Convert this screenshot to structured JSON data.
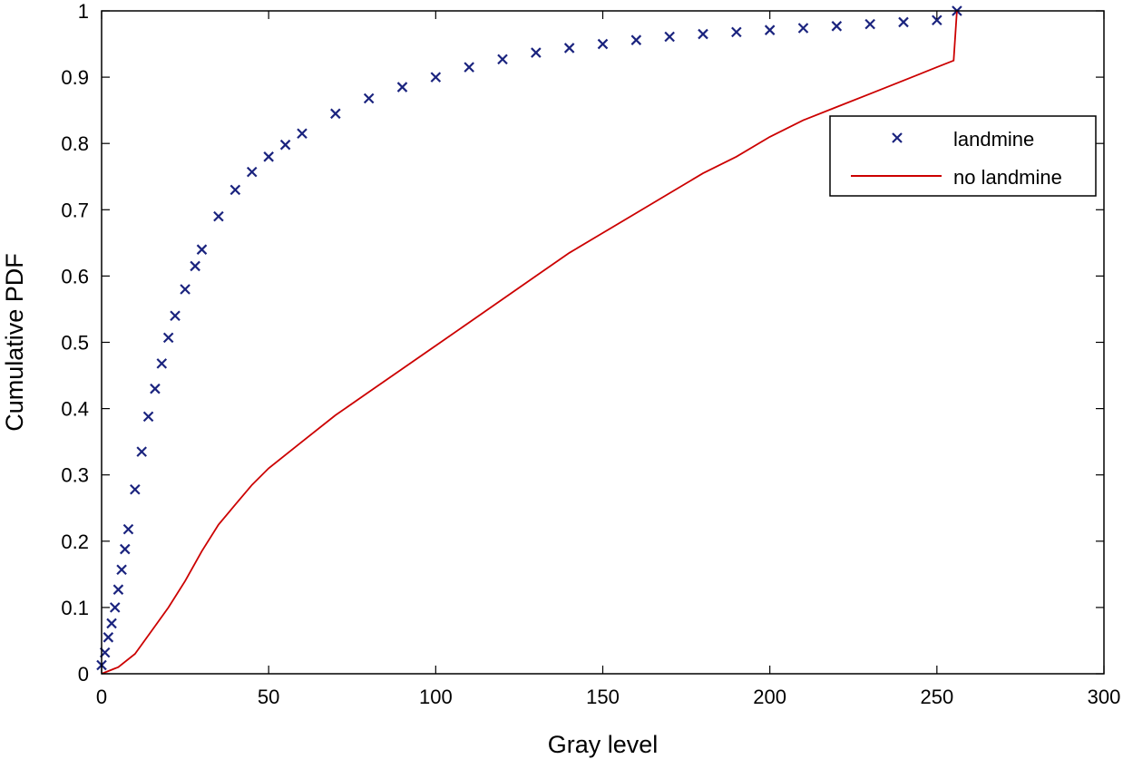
{
  "chart_data": {
    "type": "line",
    "title": "",
    "xlabel": "Gray level",
    "ylabel": "Cumulative PDF",
    "xlim": [
      0,
      300
    ],
    "ylim": [
      0,
      1
    ],
    "x_ticks": [
      "0",
      "50",
      "100",
      "150",
      "200",
      "250",
      "300"
    ],
    "y_ticks": [
      "0",
      "0.1",
      "0.2",
      "0.3",
      "0.4",
      "0.5",
      "0.6",
      "0.7",
      "0.8",
      "0.9",
      "1"
    ],
    "grid": false,
    "legend_position": "top-right",
    "series": [
      {
        "name": "landmine",
        "marker": "x",
        "color": "#1a237e",
        "x": [
          0,
          1,
          2,
          3,
          4,
          5,
          6,
          7,
          8,
          10,
          12,
          14,
          16,
          18,
          20,
          22,
          25,
          28,
          30,
          35,
          40,
          45,
          50,
          55,
          60,
          70,
          80,
          90,
          100,
          110,
          120,
          130,
          140,
          150,
          160,
          170,
          180,
          190,
          200,
          210,
          220,
          230,
          240,
          250,
          256
        ],
        "y": [
          0.013,
          0.032,
          0.055,
          0.076,
          0.1,
          0.127,
          0.157,
          0.188,
          0.218,
          0.278,
          0.335,
          0.388,
          0.43,
          0.468,
          0.507,
          0.54,
          0.58,
          0.615,
          0.64,
          0.69,
          0.73,
          0.757,
          0.78,
          0.798,
          0.815,
          0.845,
          0.868,
          0.885,
          0.9,
          0.915,
          0.927,
          0.937,
          0.944,
          0.95,
          0.956,
          0.961,
          0.965,
          0.968,
          0.971,
          0.974,
          0.977,
          0.98,
          0.983,
          0.986,
          1.0
        ]
      },
      {
        "name": "no landmine",
        "marker": "line",
        "color": "#cc0000",
        "x": [
          0,
          5,
          10,
          15,
          20,
          25,
          30,
          35,
          40,
          45,
          50,
          60,
          70,
          80,
          90,
          100,
          110,
          120,
          130,
          140,
          150,
          160,
          170,
          180,
          190,
          200,
          210,
          220,
          230,
          240,
          250,
          255,
          256
        ],
        "y": [
          0.0,
          0.01,
          0.03,
          0.065,
          0.1,
          0.14,
          0.185,
          0.225,
          0.255,
          0.285,
          0.31,
          0.35,
          0.39,
          0.425,
          0.46,
          0.495,
          0.53,
          0.565,
          0.6,
          0.635,
          0.665,
          0.695,
          0.725,
          0.755,
          0.78,
          0.81,
          0.835,
          0.855,
          0.875,
          0.895,
          0.915,
          0.925,
          1.0
        ]
      }
    ]
  }
}
